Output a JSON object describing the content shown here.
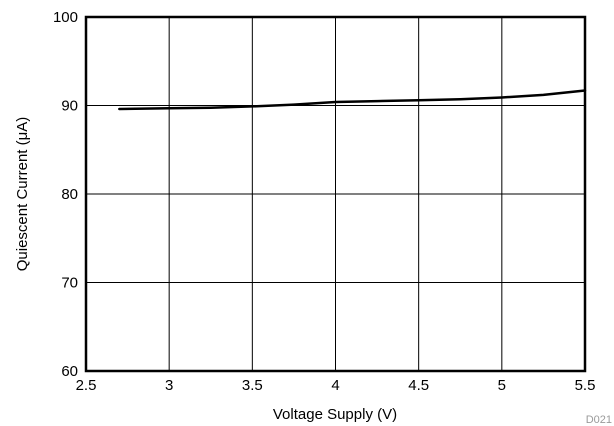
{
  "chart_data": {
    "type": "line",
    "xlabel": "Voltage Supply (V)",
    "ylabel": "Quiescent Current (μA)",
    "xlim": [
      2.5,
      5.5
    ],
    "ylim": [
      60,
      100
    ],
    "x_ticks": [
      "2.5",
      "3",
      "3.5",
      "4",
      "4.5",
      "5",
      "5.5"
    ],
    "y_ticks": [
      "60",
      "70",
      "80",
      "90",
      "100"
    ],
    "grid": true,
    "figure_code": "D021",
    "series": [
      {
        "x": [
          2.7,
          3.0,
          3.25,
          3.5,
          3.75,
          4.0,
          4.25,
          4.5,
          4.75,
          5.0,
          5.25,
          5.5
        ],
        "y": [
          89.6,
          89.7,
          89.75,
          89.9,
          90.1,
          90.4,
          90.5,
          90.6,
          90.7,
          90.9,
          91.2,
          91.7
        ]
      }
    ]
  }
}
